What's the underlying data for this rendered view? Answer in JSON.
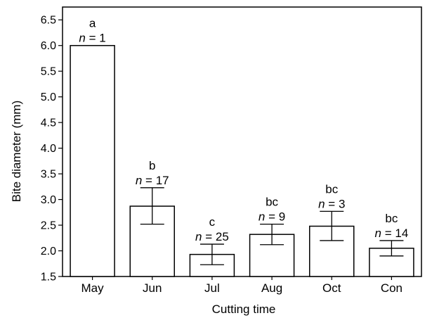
{
  "chart_data": {
    "type": "bar",
    "xlabel": "Cutting time",
    "ylabel": "Bite diameter (mm)",
    "ylim": [
      1.5,
      6.75
    ],
    "yticks": [
      "1.5",
      "2.0",
      "2.5",
      "3.0",
      "3.5",
      "4.0",
      "4.5",
      "5.0",
      "5.5",
      "6.0",
      "6.5"
    ],
    "grid": false,
    "categories": [
      "May",
      "Jun",
      "Jul",
      "Aug",
      "Oct",
      "Con"
    ],
    "values": [
      6.0,
      2.87,
      1.93,
      2.32,
      2.48,
      2.05
    ],
    "error_low": [
      null,
      2.52,
      1.73,
      2.12,
      2.2,
      1.9
    ],
    "error_high": [
      null,
      3.23,
      2.13,
      2.52,
      2.77,
      2.2
    ],
    "significance_letters": [
      "a",
      "b",
      "c",
      "bc",
      "bc",
      "bc"
    ],
    "n_labels": [
      "1",
      "17",
      "25",
      "9",
      "3",
      "14"
    ],
    "n_prefix": "n",
    "n_equals": " = "
  }
}
